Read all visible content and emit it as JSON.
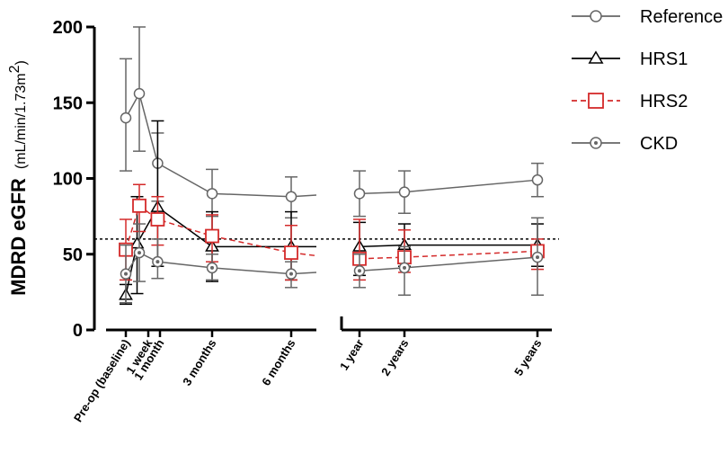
{
  "chart_data": {
    "type": "line",
    "title": "",
    "ylabel_main": "MDRD eGFR",
    "ylabel_unit_pre": "(mL/min/1.73m",
    "ylabel_unit_sup": "2",
    "ylabel_unit_post": ")",
    "ylim": [
      0,
      200
    ],
    "yticks": [
      0,
      50,
      100,
      150,
      200
    ],
    "ytick_labels": [
      "0",
      "50",
      "100",
      "150",
      "200"
    ],
    "x_segments": [
      {
        "name": "early",
        "range": [
          0,
          10
        ],
        "ticks": [
          0,
          1,
          2,
          4,
          7
        ],
        "labels": [
          "Pre-op (baseline)",
          "1 week",
          "1 month",
          "3 months",
          "6 months"
        ]
      },
      {
        "name": "late",
        "range": [
          0,
          10
        ],
        "ticks": [
          1,
          3.3,
          8
        ],
        "labels": [
          "1 year",
          "2 years",
          "5 years"
        ]
      }
    ],
    "reference_line": {
      "y": 60,
      "style": "dotted"
    },
    "series": [
      {
        "name": "Reference",
        "color": "#666666",
        "marker": "circle",
        "dash": "solid",
        "points": [
          {
            "seg": 0,
            "x": 0,
            "y": 140,
            "lo": 105,
            "hi": 179
          },
          {
            "seg": 0,
            "x": 0.6,
            "y": 156,
            "lo": 118,
            "hi": 200
          },
          {
            "seg": 0,
            "x": 1.8,
            "y": 110,
            "lo": 85,
            "hi": 130
          },
          {
            "seg": 0,
            "x": 4,
            "y": 90,
            "lo": 75,
            "hi": 106
          },
          {
            "seg": 0,
            "x": 7,
            "y": 88,
            "lo": 74,
            "hi": 101
          },
          {
            "seg": 1,
            "x": 1,
            "y": 90,
            "lo": 75,
            "hi": 105
          },
          {
            "seg": 1,
            "x": 3.3,
            "y": 91,
            "lo": 77,
            "hi": 105
          },
          {
            "seg": 1,
            "x": 8,
            "y": 99,
            "lo": 88,
            "hi": 110
          }
        ],
        "tail": {
          "seg": 0,
          "x": 8,
          "y": 89
        }
      },
      {
        "name": "HRS1",
        "color": "#000000",
        "marker": "triangle",
        "dash": "solid",
        "points": [
          {
            "seg": 0,
            "x": 0,
            "y": 23,
            "lo": 17,
            "hi": 30
          },
          {
            "seg": 0,
            "x": 0.5,
            "y": 57,
            "lo": 24,
            "hi": 88
          },
          {
            "seg": 0,
            "x": 1.8,
            "y": 81,
            "lo": 42,
            "hi": 138
          },
          {
            "seg": 0,
            "x": 4,
            "y": 55,
            "lo": 32,
            "hi": 78
          },
          {
            "seg": 0,
            "x": 7,
            "y": 55,
            "lo": 33,
            "hi": 78
          },
          {
            "seg": 1,
            "x": 1,
            "y": 55,
            "lo": 36,
            "hi": 71
          },
          {
            "seg": 1,
            "x": 3.3,
            "y": 56,
            "lo": 42,
            "hi": 70
          },
          {
            "seg": 1,
            "x": 8,
            "y": 56,
            "lo": 42,
            "hi": 70
          }
        ],
        "tail": {
          "seg": 0,
          "x": 8,
          "y": 55
        }
      },
      {
        "name": "HRS2",
        "color": "#d42a2a",
        "marker": "square",
        "dash": "dashed",
        "points": [
          {
            "seg": 0,
            "x": 0,
            "y": 53,
            "lo": 33,
            "hi": 73
          },
          {
            "seg": 0,
            "x": 0.6,
            "y": 82,
            "lo": 65,
            "hi": 96
          },
          {
            "seg": 0,
            "x": 1.8,
            "y": 73,
            "lo": 56,
            "hi": 88
          },
          {
            "seg": 0,
            "x": 4,
            "y": 62,
            "lo": 45,
            "hi": 76
          },
          {
            "seg": 0,
            "x": 7,
            "y": 51,
            "lo": 33,
            "hi": 69
          },
          {
            "seg": 1,
            "x": 1,
            "y": 47,
            "lo": 33,
            "hi": 73
          },
          {
            "seg": 1,
            "x": 3.3,
            "y": 48,
            "lo": 38,
            "hi": 66
          },
          {
            "seg": 1,
            "x": 8,
            "y": 52,
            "lo": 40,
            "hi": 60
          }
        ],
        "tail": {
          "seg": 0,
          "x": 8,
          "y": 49
        }
      },
      {
        "name": "CKD",
        "color": "#666666",
        "marker": "dotcircle",
        "dash": "solid",
        "points": [
          {
            "seg": 0,
            "x": 0,
            "y": 37,
            "lo": 18,
            "hi": 56
          },
          {
            "seg": 0,
            "x": 0.6,
            "y": 51,
            "lo": 32,
            "hi": 70
          },
          {
            "seg": 0,
            "x": 1.8,
            "y": 45,
            "lo": 34,
            "hi": 60
          },
          {
            "seg": 0,
            "x": 4,
            "y": 41,
            "lo": 33,
            "hi": 50
          },
          {
            "seg": 0,
            "x": 7,
            "y": 37,
            "lo": 28,
            "hi": 45
          },
          {
            "seg": 1,
            "x": 1,
            "y": 39,
            "lo": 28,
            "hi": 50
          },
          {
            "seg": 1,
            "x": 3.3,
            "y": 41,
            "lo": 23,
            "hi": 55
          },
          {
            "seg": 1,
            "x": 8,
            "y": 48,
            "lo": 23,
            "hi": 74
          }
        ],
        "tail": {
          "seg": 0,
          "x": 8,
          "y": 38
        }
      }
    ],
    "legend": {
      "placement": "top-right",
      "entries": [
        "Reference",
        "HRS1",
        "HRS2",
        "CKD"
      ]
    }
  }
}
